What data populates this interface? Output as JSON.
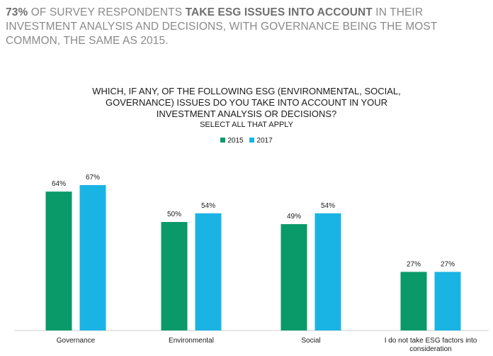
{
  "headline": {
    "pct": "73%",
    "part1": " OF SURVEY RESPONDENTS ",
    "bold": "TAKE ESG ISSUES INTO ACCOUNT",
    "part2": " IN THEIR INVESTMENT ANALYSIS AND DECISIONS, WITH GOVERNANCE BEING THE MOST COMMON, THE SAME AS 2015."
  },
  "chart_data": {
    "type": "bar",
    "title_lines": [
      "WHICH, IF ANY, OF THE FOLLOWING ESG (ENVIRONMENTAL, SOCIAL,",
      "GOVERNANCE) ISSUES DO YOU TAKE INTO ACCOUNT IN YOUR",
      "INVESTMENT ANALYSIS OR DECISIONS?"
    ],
    "subtitle": "SELECT ALL THAT APPLY",
    "categories": [
      "Governance",
      "Environmental",
      "Social",
      "I do not take ESG factors into consideration"
    ],
    "series": [
      {
        "name": "2015",
        "color": "#0a9a6a",
        "values": [
          64,
          50,
          49,
          27
        ]
      },
      {
        "name": "2017",
        "color": "#1ab4e4",
        "values": [
          67,
          54,
          54,
          27
        ]
      }
    ],
    "value_suffix": "%",
    "ylim": [
      0,
      80
    ],
    "legend_position": "top-center",
    "grid": false
  }
}
